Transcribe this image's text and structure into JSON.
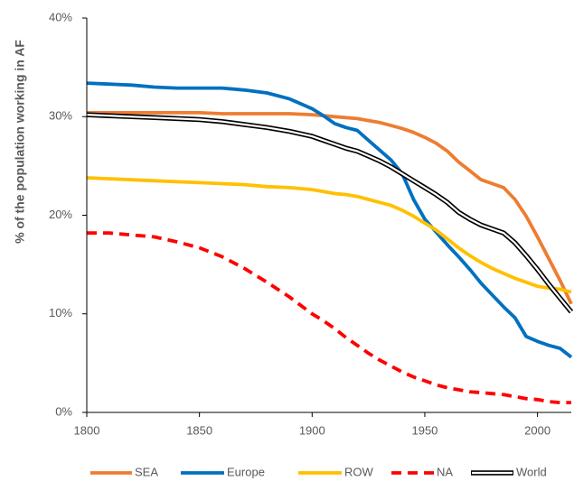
{
  "chart_data": {
    "type": "line",
    "ylabel": "% of the population working in AF",
    "xlim": [
      1800,
      2015
    ],
    "ylim": [
      0,
      40
    ],
    "x_tick_labels": [
      "1800",
      "1850",
      "1900",
      "1950",
      "2000"
    ],
    "y_tick_labels": [
      "0%",
      "10%",
      "20%",
      "30%",
      "40%"
    ],
    "grid": false,
    "legend": "bottom",
    "x": [
      1800,
      1810,
      1820,
      1830,
      1840,
      1850,
      1860,
      1870,
      1880,
      1890,
      1900,
      1905,
      1910,
      1915,
      1920,
      1925,
      1930,
      1935,
      1940,
      1945,
      1950,
      1955,
      1960,
      1965,
      1970,
      1975,
      1980,
      1985,
      1990,
      1995,
      2000,
      2005,
      2010,
      2015
    ],
    "series": [
      {
        "name": "SEA",
        "color": "#ED7D31",
        "line": "solid",
        "values": [
          30.4,
          30.4,
          30.4,
          30.4,
          30.4,
          30.4,
          30.3,
          30.3,
          30.3,
          30.3,
          30.2,
          30.1,
          30.0,
          29.9,
          29.8,
          29.6,
          29.4,
          29.1,
          28.8,
          28.4,
          27.9,
          27.3,
          26.5,
          25.4,
          24.5,
          23.6,
          23.2,
          22.8,
          21.6,
          19.9,
          17.8,
          15.6,
          13.4,
          11.0
        ]
      },
      {
        "name": "Europe",
        "color": "#0070C0",
        "line": "solid",
        "values": [
          33.4,
          33.3,
          33.2,
          33.0,
          32.9,
          32.9,
          32.9,
          32.7,
          32.4,
          31.8,
          30.8,
          30.1,
          29.3,
          28.9,
          28.6,
          27.6,
          26.6,
          25.6,
          24.2,
          21.6,
          19.6,
          18.3,
          17.0,
          15.8,
          14.5,
          13.1,
          11.9,
          10.7,
          9.6,
          7.7,
          7.2,
          6.8,
          6.5,
          5.6
        ]
      },
      {
        "name": "ROW",
        "color": "#FFC000",
        "line": "solid",
        "values": [
          23.8,
          23.7,
          23.6,
          23.5,
          23.4,
          23.3,
          23.2,
          23.1,
          22.9,
          22.8,
          22.6,
          22.4,
          22.2,
          22.1,
          21.9,
          21.6,
          21.3,
          21.0,
          20.5,
          19.9,
          19.2,
          18.5,
          17.6,
          16.7,
          15.9,
          15.2,
          14.6,
          14.1,
          13.6,
          13.2,
          12.8,
          12.6,
          12.5,
          12.2
        ]
      },
      {
        "name": "NA",
        "color": "#FF0000",
        "line": "dashed",
        "values": [
          18.2,
          18.2,
          18.0,
          17.8,
          17.3,
          16.7,
          15.8,
          14.6,
          13.2,
          11.7,
          10.0,
          9.3,
          8.5,
          7.6,
          6.8,
          6.0,
          5.3,
          4.7,
          4.1,
          3.6,
          3.2,
          2.8,
          2.5,
          2.3,
          2.1,
          2.0,
          1.9,
          1.8,
          1.6,
          1.4,
          1.3,
          1.1,
          1.0,
          1.0
        ]
      },
      {
        "name": "World",
        "color": "#000000",
        "line": "double",
        "values": [
          30.2,
          30.1,
          30.0,
          29.9,
          29.8,
          29.7,
          29.5,
          29.2,
          28.9,
          28.5,
          28.0,
          27.6,
          27.2,
          26.8,
          26.5,
          26.0,
          25.5,
          24.9,
          24.2,
          23.5,
          22.8,
          22.1,
          21.3,
          20.3,
          19.6,
          19.0,
          18.6,
          18.2,
          17.2,
          15.9,
          14.5,
          13.0,
          11.6,
          10.2
        ]
      }
    ]
  }
}
